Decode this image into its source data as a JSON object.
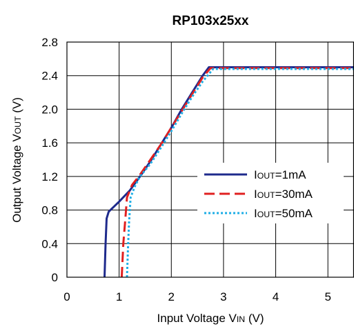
{
  "chart_data": {
    "type": "line",
    "title": "RP103x25xx",
    "xlabel": {
      "pre": "Input Voltage V",
      "sub": "IN",
      "post": " (V)"
    },
    "ylabel": {
      "pre": "Output Voltage V",
      "sub": "OUT",
      "post": " (V)"
    },
    "xlim": [
      0,
      5.5
    ],
    "ylim": [
      0,
      2.8
    ],
    "xticks": [
      0,
      1,
      2,
      3,
      4,
      5
    ],
    "yticks": [
      0,
      0.4,
      0.8,
      1.2,
      1.6,
      2.0,
      2.4,
      2.8
    ],
    "ytick_labels": [
      "0",
      "0.4",
      "0.8",
      "1.2",
      "1.6",
      "2.0",
      "2.4",
      "2.8"
    ],
    "grid": true,
    "legend": "right",
    "series": [
      {
        "name": "IOUT=1mA",
        "legend_label": {
          "pre": "I",
          "sub": "OUT",
          "post": "=1mA"
        },
        "color": "#1e2a8c",
        "dash": "solid",
        "x": [
          0.72,
          0.74,
          0.76,
          0.8,
          0.9,
          1.0,
          1.2,
          1.4,
          1.6,
          1.8,
          2.0,
          2.2,
          2.4,
          2.6,
          2.72,
          2.8,
          5.5
        ],
        "y": [
          0.0,
          0.4,
          0.7,
          0.78,
          0.84,
          0.9,
          1.03,
          1.2,
          1.38,
          1.58,
          1.78,
          2.0,
          2.2,
          2.4,
          2.5,
          2.5,
          2.5
        ]
      },
      {
        "name": "IOUT=30mA",
        "legend_label": {
          "pre": "I",
          "sub": "OUT",
          "post": "=30mA"
        },
        "color": "#e02020",
        "dash": "dashed",
        "x": [
          1.05,
          1.08,
          1.12,
          1.15,
          1.25,
          1.4,
          1.6,
          1.8,
          2.0,
          2.2,
          2.4,
          2.6,
          2.75,
          2.85,
          5.5
        ],
        "y": [
          0.0,
          0.4,
          0.7,
          0.95,
          1.1,
          1.22,
          1.4,
          1.58,
          1.78,
          1.98,
          2.18,
          2.38,
          2.49,
          2.49,
          2.49
        ]
      },
      {
        "name": "IOUT=50mA",
        "legend_label": {
          "pre": "I",
          "sub": "OUT",
          "post": "=50mA"
        },
        "color": "#1eaee6",
        "dash": "dotted",
        "x": [
          1.15,
          1.17,
          1.19,
          1.22,
          1.3,
          1.4,
          1.6,
          1.8,
          2.0,
          2.2,
          2.4,
          2.6,
          2.8,
          2.9,
          5.5
        ],
        "y": [
          0.0,
          0.35,
          0.65,
          0.95,
          1.08,
          1.2,
          1.35,
          1.54,
          1.74,
          1.95,
          2.15,
          2.33,
          2.48,
          2.48,
          2.48
        ]
      }
    ]
  }
}
